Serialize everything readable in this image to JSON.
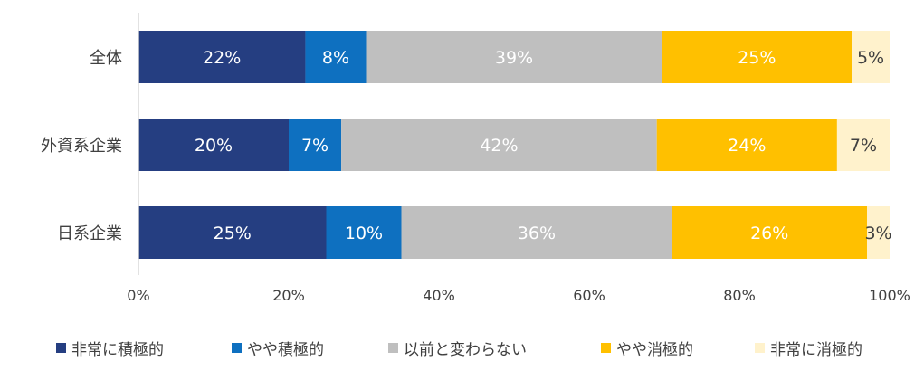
{
  "chart_data": {
    "type": "bar",
    "orientation": "horizontal",
    "stacked": true,
    "categories": [
      "全体",
      "外資系企業",
      "日系企業"
    ],
    "series": [
      {
        "name": "非常に積極的",
        "values": [
          22,
          20,
          25
        ],
        "labels": [
          "22%",
          "20%",
          "25%"
        ],
        "color": "#253E81",
        "label_color": "#ffffff"
      },
      {
        "name": "やや積極的",
        "values": [
          8,
          7,
          10
        ],
        "labels": [
          "8%",
          "7%",
          "10%"
        ],
        "color": "#0E70C0",
        "label_color": "#ffffff"
      },
      {
        "name": "以前と変わらない",
        "values": [
          39,
          42,
          36
        ],
        "labels": [
          "39%",
          "42%",
          "36%"
        ],
        "color": "#BFBFBF",
        "label_color": "#ffffff"
      },
      {
        "name": "やや消極的",
        "values": [
          25,
          24,
          26
        ],
        "labels": [
          "25%",
          "24%",
          "26%"
        ],
        "color": "#FFC000",
        "label_color": "#ffffff"
      },
      {
        "name": "非常に消極的",
        "values": [
          5,
          7,
          3
        ],
        "labels": [
          "5%",
          "7%",
          "3%"
        ],
        "color": "#FFF2CC",
        "label_color": "#404040"
      }
    ],
    "x_ticks": [
      "0%",
      "20%",
      "40%",
      "60%",
      "80%",
      "100%"
    ],
    "xlim": [
      0,
      100
    ],
    "grid": false,
    "legend_position": "bottom"
  }
}
